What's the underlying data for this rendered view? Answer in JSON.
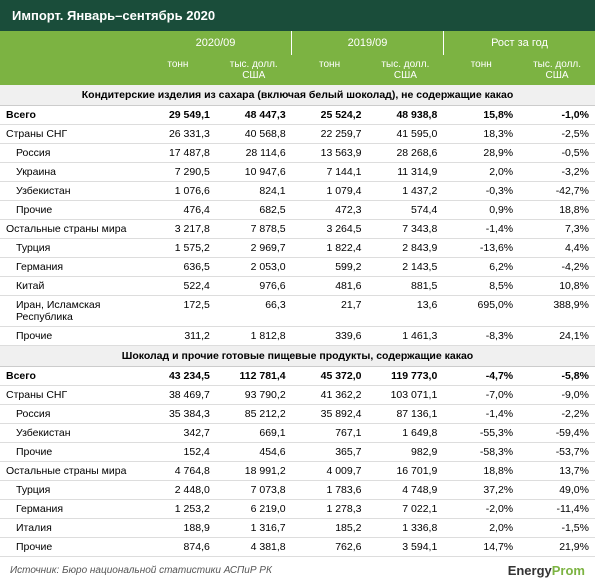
{
  "title": "Импорт. Январь–сентябрь 2020",
  "colors": {
    "header_bg": "#1a4d3a",
    "accent_bg": "#7cb342",
    "text": "#ffffff"
  },
  "header_groups": [
    "2020/09",
    "2019/09",
    "Рост за год"
  ],
  "subheaders": [
    "тонн",
    "тыс. долл. США",
    "тонн",
    "тыс. долл. США",
    "тонн",
    "тыс. долл. США"
  ],
  "sections": [
    {
      "title": "Кондитерские изделия из сахара (включая белый шоколад), не содержащие какао",
      "rows": [
        {
          "name": "Всего",
          "v": [
            "29 549,1",
            "48 447,3",
            "25 524,2",
            "48 938,8",
            "15,8%",
            "-1,0%"
          ],
          "bold": true
        },
        {
          "name": "Страны СНГ",
          "v": [
            "26 331,3",
            "40 568,8",
            "22 259,7",
            "41 595,0",
            "18,3%",
            "-2,5%"
          ]
        },
        {
          "name": "Россия",
          "v": [
            "17 487,8",
            "28 114,6",
            "13 563,9",
            "28 268,6",
            "28,9%",
            "-0,5%"
          ],
          "indent": true
        },
        {
          "name": "Украина",
          "v": [
            "7 290,5",
            "10 947,6",
            "7 144,1",
            "11 314,9",
            "2,0%",
            "-3,2%"
          ],
          "indent": true
        },
        {
          "name": "Узбекистан",
          "v": [
            "1 076,6",
            "824,1",
            "1 079,4",
            "1 437,2",
            "-0,3%",
            "-42,7%"
          ],
          "indent": true
        },
        {
          "name": "Прочие",
          "v": [
            "476,4",
            "682,5",
            "472,3",
            "574,4",
            "0,9%",
            "18,8%"
          ],
          "indent": true
        },
        {
          "name": "Остальные страны мира",
          "v": [
            "3 217,8",
            "7 878,5",
            "3 264,5",
            "7 343,8",
            "-1,4%",
            "7,3%"
          ]
        },
        {
          "name": "Турция",
          "v": [
            "1 575,2",
            "2 969,7",
            "1 822,4",
            "2 843,9",
            "-13,6%",
            "4,4%"
          ],
          "indent": true
        },
        {
          "name": "Германия",
          "v": [
            "636,5",
            "2 053,0",
            "599,2",
            "2 143,5",
            "6,2%",
            "-4,2%"
          ],
          "indent": true
        },
        {
          "name": "Китай",
          "v": [
            "522,4",
            "976,6",
            "481,6",
            "881,5",
            "8,5%",
            "10,8%"
          ],
          "indent": true
        },
        {
          "name": "Иран, Исламская Республика",
          "v": [
            "172,5",
            "66,3",
            "21,7",
            "13,6",
            "695,0%",
            "388,9%"
          ],
          "indent": true
        },
        {
          "name": "Прочие",
          "v": [
            "311,2",
            "1 812,8",
            "339,6",
            "1 461,3",
            "-8,3%",
            "24,1%"
          ],
          "indent": true
        }
      ]
    },
    {
      "title": "Шоколад и прочие готовые пищевые продукты, содержащие какао",
      "rows": [
        {
          "name": "Всего",
          "v": [
            "43 234,5",
            "112 781,4",
            "45 372,0",
            "119 773,0",
            "-4,7%",
            "-5,8%"
          ],
          "bold": true
        },
        {
          "name": "Страны СНГ",
          "v": [
            "38 469,7",
            "93 790,2",
            "41 362,2",
            "103 071,1",
            "-7,0%",
            "-9,0%"
          ]
        },
        {
          "name": "Россия",
          "v": [
            "35 384,3",
            "85 212,2",
            "35 892,4",
            "87 136,1",
            "-1,4%",
            "-2,2%"
          ],
          "indent": true
        },
        {
          "name": "Узбекистан",
          "v": [
            "342,7",
            "669,1",
            "767,1",
            "1 649,8",
            "-55,3%",
            "-59,4%"
          ],
          "indent": true
        },
        {
          "name": "Прочие",
          "v": [
            "152,4",
            "454,6",
            "365,7",
            "982,9",
            "-58,3%",
            "-53,7%"
          ],
          "indent": true
        },
        {
          "name": "Остальные страны мира",
          "v": [
            "4 764,8",
            "18 991,2",
            "4 009,7",
            "16 701,9",
            "18,8%",
            "13,7%"
          ]
        },
        {
          "name": "Турция",
          "v": [
            "2 448,0",
            "7 073,8",
            "1 783,6",
            "4 748,9",
            "37,2%",
            "49,0%"
          ],
          "indent": true
        },
        {
          "name": "Германия",
          "v": [
            "1 253,2",
            "6 219,0",
            "1 278,3",
            "7 022,1",
            "-2,0%",
            "-11,4%"
          ],
          "indent": true
        },
        {
          "name": "Италия",
          "v": [
            "188,9",
            "1 316,7",
            "185,2",
            "1 336,8",
            "2,0%",
            "-1,5%"
          ],
          "indent": true
        },
        {
          "name": "Прочие",
          "v": [
            "874,6",
            "4 381,8",
            "762,6",
            "3 594,1",
            "14,7%",
            "21,9%"
          ],
          "indent": true
        }
      ]
    }
  ],
  "source": "Источник: Бюро национальной статистики АСПиР РК",
  "logo": {
    "prefix": "Energy",
    "suffix": "Prom"
  }
}
